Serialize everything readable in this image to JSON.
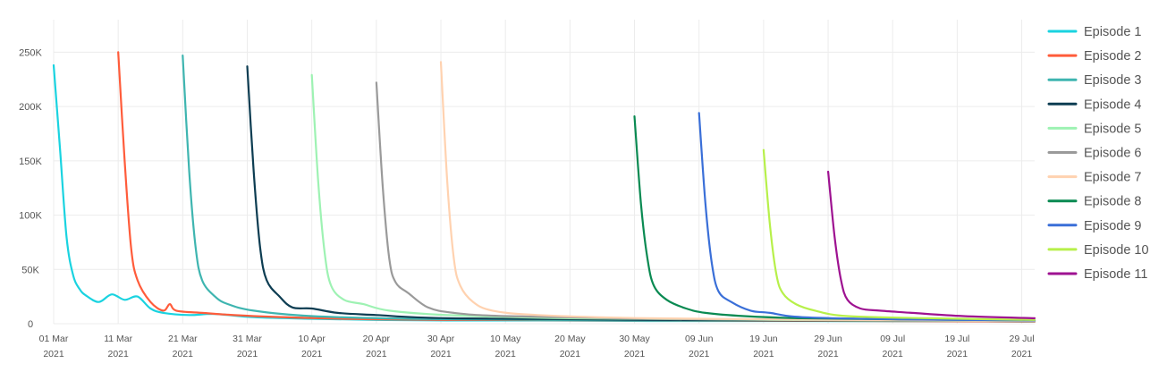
{
  "chart_data": {
    "type": "line",
    "title": "",
    "xlabel": "",
    "ylabel": "",
    "ylim": [
      0,
      280000
    ],
    "y_ticks": [
      {
        "value": 0,
        "label": "0"
      },
      {
        "value": 50000,
        "label": "50K"
      },
      {
        "value": 100000,
        "label": "100K"
      },
      {
        "value": 150000,
        "label": "150K"
      },
      {
        "value": 200000,
        "label": "200K"
      },
      {
        "value": 250000,
        "label": "250K"
      }
    ],
    "xlim": [
      "2021-03-01",
      "2021-07-31"
    ],
    "x_ticks": [
      {
        "date": "2021-03-01",
        "line1": "01 Mar",
        "line2": "2021"
      },
      {
        "date": "2021-03-11",
        "line1": "11 Mar",
        "line2": "2021"
      },
      {
        "date": "2021-03-21",
        "line1": "21 Mar",
        "line2": "2021"
      },
      {
        "date": "2021-03-31",
        "line1": "31 Mar",
        "line2": "2021"
      },
      {
        "date": "2021-04-10",
        "line1": "10 Apr",
        "line2": "2021"
      },
      {
        "date": "2021-04-20",
        "line1": "20 Apr",
        "line2": "2021"
      },
      {
        "date": "2021-04-30",
        "line1": "30 Apr",
        "line2": "2021"
      },
      {
        "date": "2021-05-10",
        "line1": "10 May",
        "line2": "2021"
      },
      {
        "date": "2021-05-20",
        "line1": "20 May",
        "line2": "2021"
      },
      {
        "date": "2021-05-30",
        "line1": "30 May",
        "line2": "2021"
      },
      {
        "date": "2021-06-09",
        "line1": "09 Jun",
        "line2": "2021"
      },
      {
        "date": "2021-06-19",
        "line1": "19 Jun",
        "line2": "2021"
      },
      {
        "date": "2021-06-29",
        "line1": "29 Jun",
        "line2": "2021"
      },
      {
        "date": "2021-07-09",
        "line1": "09 Jul",
        "line2": "2021"
      },
      {
        "date": "2021-07-19",
        "line1": "19 Jul",
        "line2": "2021"
      },
      {
        "date": "2021-07-29",
        "line1": "29 Jul",
        "line2": "2021"
      }
    ],
    "grid": true,
    "legend_position": "right",
    "series": [
      {
        "name": "Episode 1",
        "color": "#1ad3e0",
        "points": [
          [
            "2021-03-01",
            238000
          ],
          [
            "2021-03-02",
            160000
          ],
          [
            "2021-03-03",
            80000
          ],
          [
            "2021-03-04",
            45000
          ],
          [
            "2021-03-05",
            32000
          ],
          [
            "2021-03-06",
            26000
          ],
          [
            "2021-03-08",
            20000
          ],
          [
            "2021-03-10",
            27000
          ],
          [
            "2021-03-12",
            22000
          ],
          [
            "2021-03-14",
            25000
          ],
          [
            "2021-03-16",
            14000
          ],
          [
            "2021-03-18",
            10000
          ],
          [
            "2021-03-22",
            8000
          ],
          [
            "2021-03-26",
            9000
          ],
          [
            "2021-04-01",
            6000
          ],
          [
            "2021-04-10",
            4500
          ],
          [
            "2021-04-20",
            3500
          ],
          [
            "2021-05-01",
            3000
          ],
          [
            "2021-05-15",
            3000
          ],
          [
            "2021-06-01",
            2500
          ],
          [
            "2021-06-20",
            2500
          ],
          [
            "2021-07-10",
            2200
          ],
          [
            "2021-07-31",
            2000
          ]
        ]
      },
      {
        "name": "Episode 2",
        "color": "#ff5c3b",
        "points": [
          [
            "2021-03-11",
            250000
          ],
          [
            "2021-03-12",
            150000
          ],
          [
            "2021-03-13",
            70000
          ],
          [
            "2021-03-14",
            40000
          ],
          [
            "2021-03-16",
            20000
          ],
          [
            "2021-03-18",
            12000
          ],
          [
            "2021-03-19",
            18000
          ],
          [
            "2021-03-20",
            12000
          ],
          [
            "2021-03-24",
            10000
          ],
          [
            "2021-04-01",
            7000
          ],
          [
            "2021-04-15",
            4500
          ],
          [
            "2021-05-01",
            3500
          ],
          [
            "2021-06-01",
            3000
          ],
          [
            "2021-07-31",
            2000
          ]
        ]
      },
      {
        "name": "Episode 3",
        "color": "#3fb5b0",
        "points": [
          [
            "2021-03-21",
            247000
          ],
          [
            "2021-03-22",
            140000
          ],
          [
            "2021-03-23",
            70000
          ],
          [
            "2021-03-24",
            40000
          ],
          [
            "2021-03-26",
            25000
          ],
          [
            "2021-03-28",
            18000
          ],
          [
            "2021-04-01",
            12000
          ],
          [
            "2021-04-10",
            7000
          ],
          [
            "2021-04-25",
            4500
          ],
          [
            "2021-05-15",
            3500
          ],
          [
            "2021-06-15",
            3000
          ],
          [
            "2021-07-31",
            2500
          ]
        ]
      },
      {
        "name": "Episode 4",
        "color": "#0d3d52",
        "points": [
          [
            "2021-03-31",
            237000
          ],
          [
            "2021-04-01",
            140000
          ],
          [
            "2021-04-02",
            70000
          ],
          [
            "2021-04-03",
            40000
          ],
          [
            "2021-04-05",
            25000
          ],
          [
            "2021-04-07",
            15000
          ],
          [
            "2021-04-10",
            14000
          ],
          [
            "2021-04-14",
            10000
          ],
          [
            "2021-04-20",
            8000
          ],
          [
            "2021-05-01",
            5000
          ],
          [
            "2021-06-01",
            3500
          ],
          [
            "2021-07-31",
            2500
          ]
        ]
      },
      {
        "name": "Episode 5",
        "color": "#9ef2b3",
        "points": [
          [
            "2021-04-10",
            229000
          ],
          [
            "2021-04-11",
            130000
          ],
          [
            "2021-04-12",
            65000
          ],
          [
            "2021-04-13",
            35000
          ],
          [
            "2021-04-15",
            22000
          ],
          [
            "2021-04-18",
            18000
          ],
          [
            "2021-04-22",
            12000
          ],
          [
            "2021-05-01",
            8000
          ],
          [
            "2021-05-20",
            5000
          ],
          [
            "2021-06-20",
            3500
          ],
          [
            "2021-07-31",
            2500
          ]
        ]
      },
      {
        "name": "Episode 6",
        "color": "#9a9a9a",
        "points": [
          [
            "2021-04-20",
            222000
          ],
          [
            "2021-04-21",
            125000
          ],
          [
            "2021-04-22",
            60000
          ],
          [
            "2021-04-23",
            38000
          ],
          [
            "2021-04-25",
            28000
          ],
          [
            "2021-04-28",
            15000
          ],
          [
            "2021-05-02",
            10000
          ],
          [
            "2021-05-10",
            7000
          ],
          [
            "2021-06-01",
            4500
          ],
          [
            "2021-07-01",
            3500
          ],
          [
            "2021-07-31",
            2500
          ]
        ]
      },
      {
        "name": "Episode 7",
        "color": "#ffd2b0",
        "points": [
          [
            "2021-04-30",
            241000
          ],
          [
            "2021-05-01",
            130000
          ],
          [
            "2021-05-02",
            60000
          ],
          [
            "2021-05-03",
            35000
          ],
          [
            "2021-05-05",
            20000
          ],
          [
            "2021-05-08",
            12000
          ],
          [
            "2021-05-15",
            8000
          ],
          [
            "2021-06-01",
            5000
          ],
          [
            "2021-07-01",
            3500
          ],
          [
            "2021-07-31",
            2500
          ]
        ]
      },
      {
        "name": "Episode 8",
        "color": "#0a8a52",
        "points": [
          [
            "2021-05-30",
            191000
          ],
          [
            "2021-05-31",
            110000
          ],
          [
            "2021-06-01",
            60000
          ],
          [
            "2021-06-02",
            35000
          ],
          [
            "2021-06-04",
            22000
          ],
          [
            "2021-06-07",
            14000
          ],
          [
            "2021-06-10",
            10000
          ],
          [
            "2021-06-16",
            7000
          ],
          [
            "2021-06-25",
            5000
          ],
          [
            "2021-07-10",
            4000
          ],
          [
            "2021-07-31",
            3000
          ]
        ]
      },
      {
        "name": "Episode 9",
        "color": "#3a6fd8",
        "points": [
          [
            "2021-06-09",
            194000
          ],
          [
            "2021-06-10",
            110000
          ],
          [
            "2021-06-11",
            55000
          ],
          [
            "2021-06-12",
            30000
          ],
          [
            "2021-06-14",
            20000
          ],
          [
            "2021-06-17",
            12000
          ],
          [
            "2021-06-20",
            10000
          ],
          [
            "2021-06-25",
            6000
          ],
          [
            "2021-07-10",
            4000
          ],
          [
            "2021-07-31",
            3000
          ]
        ]
      },
      {
        "name": "Episode 10",
        "color": "#b7f04a",
        "points": [
          [
            "2021-06-19",
            160000
          ],
          [
            "2021-06-20",
            90000
          ],
          [
            "2021-06-21",
            45000
          ],
          [
            "2021-06-22",
            28000
          ],
          [
            "2021-06-24",
            18000
          ],
          [
            "2021-06-27",
            12000
          ],
          [
            "2021-07-02",
            7000
          ],
          [
            "2021-07-15",
            5000
          ],
          [
            "2021-07-31",
            3500
          ]
        ]
      },
      {
        "name": "Episode 11",
        "color": "#9e1291",
        "points": [
          [
            "2021-06-29",
            140000
          ],
          [
            "2021-06-30",
            80000
          ],
          [
            "2021-07-01",
            40000
          ],
          [
            "2021-07-02",
            22000
          ],
          [
            "2021-07-04",
            14000
          ],
          [
            "2021-07-07",
            12000
          ],
          [
            "2021-07-12",
            10000
          ],
          [
            "2021-07-20",
            7000
          ],
          [
            "2021-07-31",
            5000
          ]
        ]
      }
    ]
  }
}
